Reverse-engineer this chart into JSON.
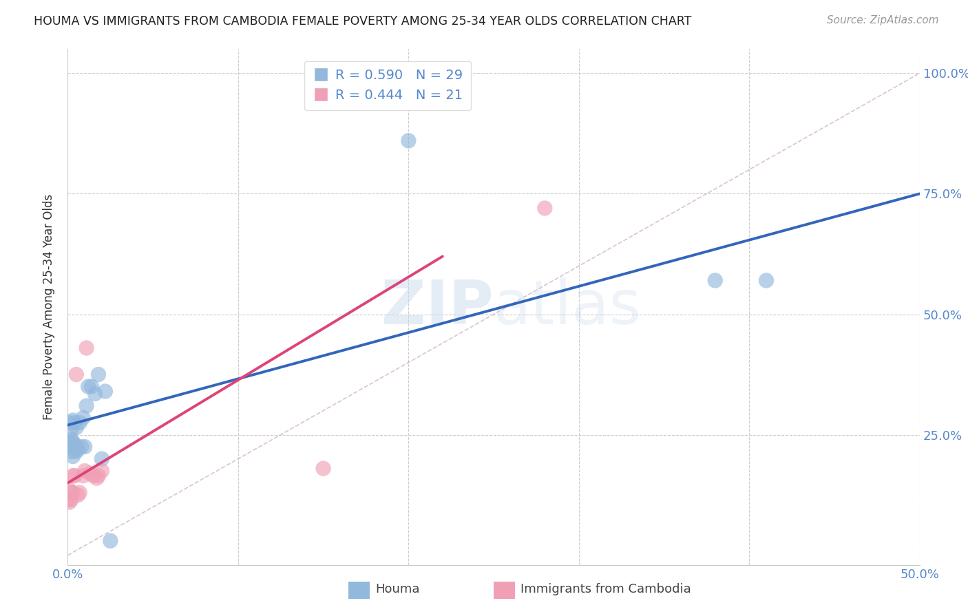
{
  "title": "HOUMA VS IMMIGRANTS FROM CAMBODIA FEMALE POVERTY AMONG 25-34 YEAR OLDS CORRELATION CHART",
  "source": "Source: ZipAtlas.com",
  "ylabel": "Female Poverty Among 25-34 Year Olds",
  "xlim": [
    0.0,
    0.5
  ],
  "ylim": [
    -0.02,
    1.05
  ],
  "background_color": "#ffffff",
  "grid_color": "#dddddd",
  "watermark": "ZIPatlas",
  "houma_color": "#92b8dd",
  "cambodia_color": "#f0a0b5",
  "houma_line_color": "#3366bb",
  "cambodia_line_color": "#dd4477",
  "diagonal_color": "#ccaabb",
  "R_houma": 0.59,
  "N_houma": 29,
  "R_cambodia": 0.444,
  "N_cambodia": 21,
  "houma_x": [
    0.0,
    0.001,
    0.001,
    0.002,
    0.002,
    0.002,
    0.003,
    0.003,
    0.003,
    0.004,
    0.004,
    0.005,
    0.005,
    0.006,
    0.007,
    0.008,
    0.009,
    0.01,
    0.011,
    0.012,
    0.014,
    0.016,
    0.018,
    0.02,
    0.022,
    0.025,
    0.2,
    0.38,
    0.41
  ],
  "houma_y": [
    0.235,
    0.225,
    0.275,
    0.215,
    0.24,
    0.26,
    0.205,
    0.235,
    0.28,
    0.23,
    0.275,
    0.215,
    0.265,
    0.22,
    0.275,
    0.225,
    0.285,
    0.225,
    0.31,
    0.35,
    0.35,
    0.335,
    0.375,
    0.2,
    0.34,
    0.03,
    0.86,
    0.57,
    0.57
  ],
  "cambodia_x": [
    0.0,
    0.001,
    0.001,
    0.002,
    0.002,
    0.003,
    0.003,
    0.004,
    0.005,
    0.006,
    0.007,
    0.009,
    0.01,
    0.011,
    0.013,
    0.015,
    0.017,
    0.018,
    0.02,
    0.15,
    0.28
  ],
  "cambodia_y": [
    0.115,
    0.11,
    0.135,
    0.13,
    0.115,
    0.13,
    0.165,
    0.165,
    0.375,
    0.125,
    0.13,
    0.165,
    0.175,
    0.43,
    0.17,
    0.165,
    0.16,
    0.165,
    0.175,
    0.18,
    0.72
  ],
  "houma_line_x": [
    0.0,
    0.5
  ],
  "houma_line_y": [
    0.27,
    0.75
  ],
  "cambodia_line_x": [
    0.0,
    0.22
  ],
  "cambodia_line_y": [
    0.15,
    0.62
  ]
}
